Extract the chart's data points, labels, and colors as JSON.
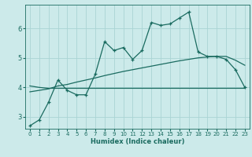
{
  "xlabel": "Humidex (Indice chaleur)",
  "bg_color": "#cceaea",
  "line_color": "#1a6b60",
  "grid_color": "#aad4d4",
  "xlim": [
    -0.5,
    23.5
  ],
  "ylim": [
    2.6,
    6.8
  ],
  "xticks": [
    0,
    1,
    2,
    3,
    4,
    5,
    6,
    7,
    8,
    9,
    10,
    11,
    12,
    13,
    14,
    15,
    16,
    17,
    18,
    19,
    20,
    21,
    22,
    23
  ],
  "yticks": [
    3,
    4,
    5,
    6
  ],
  "jagged_x": [
    0,
    1,
    2,
    3,
    4,
    5,
    6,
    7,
    8,
    9,
    10,
    11,
    12,
    13,
    14,
    15,
    16,
    17,
    18,
    19,
    20,
    21,
    22,
    23
  ],
  "jagged_y": [
    2.7,
    2.9,
    3.5,
    4.25,
    3.9,
    3.75,
    3.75,
    4.45,
    5.55,
    5.25,
    5.35,
    4.95,
    5.25,
    6.2,
    6.1,
    6.15,
    6.35,
    6.55,
    5.2,
    5.05,
    5.05,
    4.95,
    4.6,
    4.0
  ],
  "smooth_x": [
    0,
    1,
    2,
    3,
    4,
    5,
    6,
    7,
    8,
    9,
    10,
    11,
    12,
    13,
    14,
    15,
    16,
    17,
    18,
    19,
    20,
    21,
    22,
    23
  ],
  "smooth_y": [
    3.85,
    3.9,
    3.95,
    4.05,
    4.1,
    4.18,
    4.25,
    4.32,
    4.4,
    4.47,
    4.54,
    4.6,
    4.66,
    4.72,
    4.78,
    4.84,
    4.9,
    4.95,
    5.0,
    5.03,
    5.05,
    5.05,
    4.92,
    4.75
  ],
  "flat_x": [
    0,
    1,
    2,
    3,
    4,
    5,
    6,
    7,
    8,
    9,
    10,
    11,
    12,
    13,
    14,
    15,
    16,
    17,
    18,
    19,
    20,
    21,
    22,
    23
  ],
  "flat_y": [
    4.05,
    4.0,
    3.97,
    3.97,
    3.97,
    3.97,
    3.97,
    3.97,
    3.97,
    3.97,
    3.97,
    3.97,
    3.97,
    3.97,
    3.97,
    3.97,
    3.97,
    3.97,
    3.97,
    3.97,
    3.97,
    3.97,
    3.97,
    3.97
  ]
}
